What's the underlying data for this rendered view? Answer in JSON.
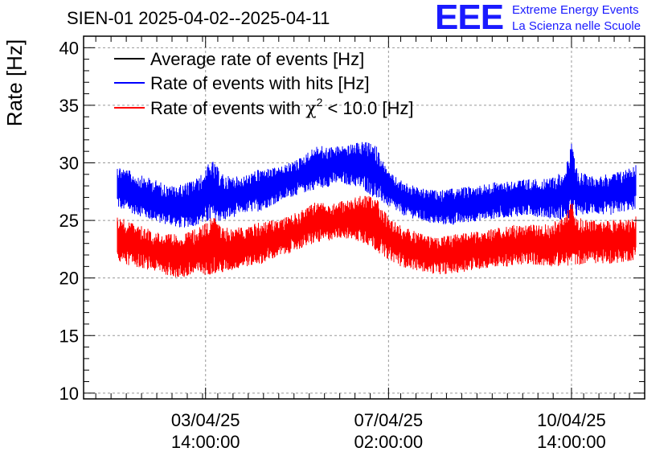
{
  "header": {
    "title": "SIEN-01 2025-04-02--2025-04-11",
    "logo_text": "EEE",
    "org_line1": "Extreme Energy Events",
    "org_line2": "La Scienza nelle Scuole"
  },
  "colors": {
    "average": "#000000",
    "hits": "#0000ff",
    "chi2": "#ff0000",
    "logo": "#1a1aff"
  },
  "chart_data": {
    "type": "line",
    "title": "SIEN-01 2025-04-02--2025-04-11",
    "xlabel": "",
    "ylabel": "Rate [Hz]",
    "ylim": [
      9.5,
      41
    ],
    "yticks": [
      10,
      15,
      20,
      25,
      30,
      35,
      40
    ],
    "xlim": [
      0,
      9.2
    ],
    "xticks": [
      {
        "x": 2.0,
        "line1": "03/04/25",
        "line2": "14:00:00"
      },
      {
        "x": 5.0,
        "line1": "07/04/25",
        "line2": "02:00:00"
      },
      {
        "x": 8.0,
        "line1": "10/04/25",
        "line2": "14:00:00"
      }
    ],
    "grid": true,
    "legend_position": "top-left",
    "legend": [
      {
        "label": "Average rate of events [Hz]",
        "color": "#000000"
      },
      {
        "label": "Rate of events with hits [Hz]",
        "color": "#0000ff"
      },
      {
        "label_prefix": "Rate of events with ",
        "label_symbol": "χ",
        "label_sup": "2",
        "label_suffix": " < 10.0 [Hz]",
        "color": "#ff0000"
      }
    ],
    "series": [
      {
        "name": "Rate of events with hits [Hz]",
        "color": "#0000ff",
        "x": [
          0.55,
          0.8,
          1.0,
          1.2,
          1.4,
          1.6,
          1.9,
          2.1,
          2.3,
          2.6,
          2.9,
          3.2,
          3.5,
          3.7,
          3.8,
          4.0,
          4.2,
          4.4,
          4.6,
          4.8,
          5.0,
          5.2,
          5.5,
          5.8,
          6.1,
          6.4,
          6.7,
          7.0,
          7.3,
          7.6,
          7.9,
          8.0,
          8.1,
          8.3,
          8.6,
          8.9,
          9.05
        ],
        "min": [
          26.0,
          25.6,
          25.2,
          24.8,
          24.6,
          24.3,
          24.6,
          24.8,
          24.9,
          25.6,
          25.8,
          26.6,
          27.2,
          27.5,
          27.7,
          27.9,
          28.2,
          28.0,
          27.6,
          26.8,
          26.2,
          25.5,
          25.0,
          24.6,
          24.6,
          24.9,
          25.1,
          25.3,
          25.4,
          25.2,
          25.0,
          25.1,
          25.3,
          25.6,
          25.4,
          25.8,
          25.9
        ],
        "max": [
          29.9,
          29.2,
          28.8,
          28.5,
          28.0,
          28.1,
          28.8,
          30.3,
          28.9,
          28.8,
          29.5,
          29.6,
          30.3,
          31.0,
          31.5,
          31.4,
          31.5,
          31.6,
          31.9,
          31.5,
          29.2,
          28.5,
          27.8,
          27.6,
          27.8,
          28.0,
          28.3,
          28.5,
          28.6,
          28.6,
          29.4,
          31.7,
          29.3,
          28.9,
          29.0,
          29.5,
          30.0
        ]
      },
      {
        "name": "Rate of events with χ2 < 10.0 [Hz]",
        "color": "#ff0000",
        "x": [
          0.55,
          0.8,
          1.0,
          1.2,
          1.4,
          1.6,
          1.9,
          2.1,
          2.3,
          2.6,
          2.9,
          3.2,
          3.5,
          3.7,
          3.8,
          4.0,
          4.2,
          4.4,
          4.6,
          4.8,
          5.0,
          5.2,
          5.5,
          5.8,
          6.1,
          6.4,
          6.7,
          7.0,
          7.3,
          7.6,
          7.9,
          8.0,
          8.1,
          8.3,
          8.6,
          8.9,
          9.05
        ],
        "min": [
          21.4,
          21.0,
          20.8,
          20.5,
          20.2,
          19.9,
          20.2,
          20.3,
          20.4,
          20.9,
          21.2,
          21.8,
          22.4,
          22.8,
          23.0,
          23.2,
          23.5,
          23.3,
          23.0,
          22.3,
          21.6,
          21.0,
          20.6,
          20.3,
          20.4,
          20.7,
          20.9,
          21.0,
          21.2,
          21.0,
          21.0,
          21.1,
          21.1,
          21.3,
          21.2,
          21.4,
          21.6
        ],
        "max": [
          25.4,
          24.8,
          24.4,
          24.0,
          23.8,
          23.8,
          24.4,
          25.5,
          24.4,
          24.4,
          24.9,
          25.1,
          25.7,
          26.3,
          26.6,
          26.5,
          26.7,
          26.8,
          27.5,
          26.9,
          25.3,
          24.6,
          23.9,
          23.6,
          23.8,
          24.0,
          24.3,
          24.6,
          24.6,
          24.7,
          25.3,
          26.9,
          25.3,
          25.0,
          25.0,
          25.2,
          25.4
        ]
      }
    ]
  }
}
